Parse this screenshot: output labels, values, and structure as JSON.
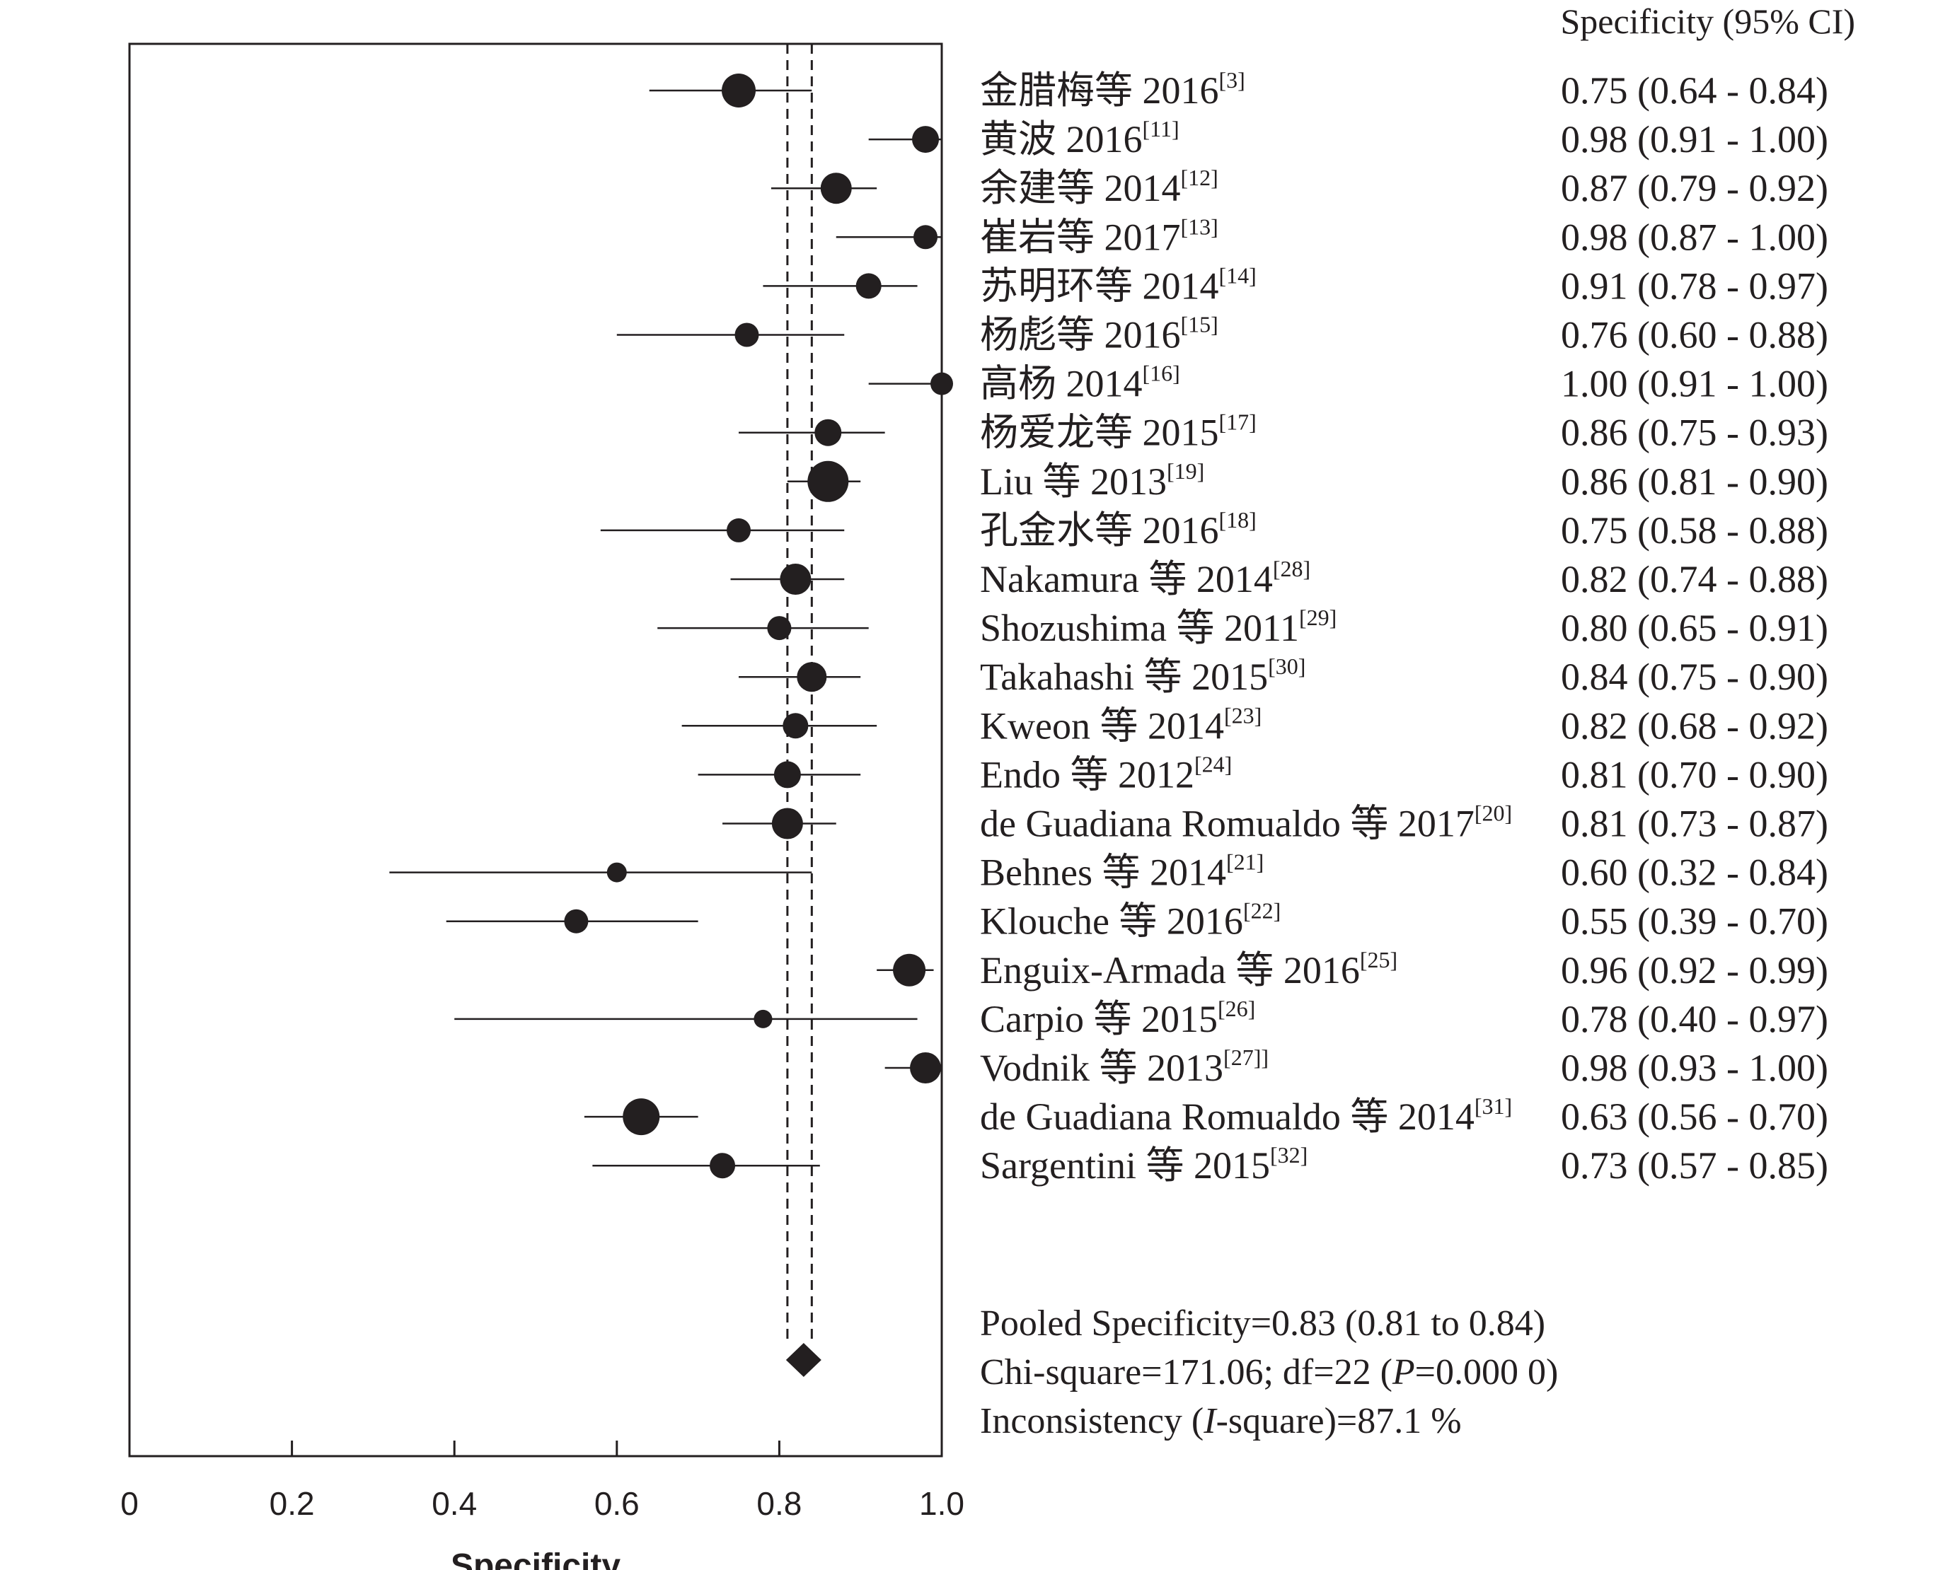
{
  "chart_data": {
    "type": "forest",
    "xlabel": "Specificity",
    "ci_header": "Specificity (95% CI)",
    "xlim": [
      0,
      1.0
    ],
    "xticks": [
      {
        "value": 0,
        "label": "0"
      },
      {
        "value": 0.2,
        "label": "0.2"
      },
      {
        "value": 0.4,
        "label": "0.4"
      },
      {
        "value": 0.6,
        "label": "0.6"
      },
      {
        "value": 0.8,
        "label": "0.8"
      },
      {
        "value": 1.0,
        "label": "1.0"
      }
    ],
    "grid": false,
    "studies": [
      {
        "name": "金腊梅等 2016",
        "ref": "[3]",
        "est": 0.75,
        "lo": 0.64,
        "hi": 0.84,
        "weight": 1.2,
        "ci_text": "0.75 (0.64 - 0.84)"
      },
      {
        "name": "黄波 2016",
        "ref": "[11]",
        "est": 0.98,
        "lo": 0.91,
        "hi": 1.0,
        "weight": 0.95,
        "ci_text": "0.98 (0.91 - 1.00)"
      },
      {
        "name": "余建等 2014",
        "ref": "[12]",
        "est": 0.87,
        "lo": 0.79,
        "hi": 0.92,
        "weight": 1.1,
        "ci_text": "0.87 (0.79 - 0.92)"
      },
      {
        "name": "崔岩等 2017",
        "ref": "[13]",
        "est": 0.98,
        "lo": 0.87,
        "hi": 1.0,
        "weight": 0.85,
        "ci_text": "0.98 (0.87 - 1.00)"
      },
      {
        "name": "苏明环等 2014",
        "ref": "[14]",
        "est": 0.91,
        "lo": 0.78,
        "hi": 0.97,
        "weight": 0.9,
        "ci_text": "0.91 (0.78 - 0.97)"
      },
      {
        "name": "杨彪等 2016",
        "ref": "[15]",
        "est": 0.76,
        "lo": 0.6,
        "hi": 0.88,
        "weight": 0.85,
        "ci_text": "0.76 (0.60 - 0.88)"
      },
      {
        "name": "高杨 2014",
        "ref": "[16]",
        "est": 1.0,
        "lo": 0.91,
        "hi": 1.0,
        "weight": 0.8,
        "ci_text": "1.00 (0.91 - 1.00)"
      },
      {
        "name": "杨爱龙等 2015",
        "ref": "[17]",
        "est": 0.86,
        "lo": 0.75,
        "hi": 0.93,
        "weight": 0.95,
        "ci_text": "0.86 (0.75 - 0.93)"
      },
      {
        "name": "Liu 等 2013",
        "ref": "[19]",
        "est": 0.86,
        "lo": 0.81,
        "hi": 0.9,
        "weight": 1.45,
        "ci_text": "0.86 (0.81 - 0.90)"
      },
      {
        "name": "孔金水等 2016",
        "ref": "[18]",
        "est": 0.75,
        "lo": 0.58,
        "hi": 0.88,
        "weight": 0.85,
        "ci_text": "0.75 (0.58 - 0.88)"
      },
      {
        "name": "Nakamura 等 2014",
        "ref": "[28]",
        "est": 0.82,
        "lo": 0.74,
        "hi": 0.88,
        "weight": 1.1,
        "ci_text": "0.82 (0.74 - 0.88)"
      },
      {
        "name": "Shozushima 等 2011",
        "ref": "[29]",
        "est": 0.8,
        "lo": 0.65,
        "hi": 0.91,
        "weight": 0.85,
        "ci_text": "0.80 (0.65 - 0.91)"
      },
      {
        "name": "Takahashi 等 2015",
        "ref": "[30]",
        "est": 0.84,
        "lo": 0.75,
        "hi": 0.9,
        "weight": 1.05,
        "ci_text": "0.84 (0.75 - 0.90)"
      },
      {
        "name": "Kweon 等 2014",
        "ref": "[23]",
        "est": 0.82,
        "lo": 0.68,
        "hi": 0.92,
        "weight": 0.9,
        "ci_text": "0.82 (0.68 - 0.92)"
      },
      {
        "name": "Endo 等 2012",
        "ref": "[24]",
        "est": 0.81,
        "lo": 0.7,
        "hi": 0.9,
        "weight": 0.95,
        "ci_text": "0.81 (0.70 - 0.90)"
      },
      {
        "name": "de Guadiana Romualdo 等 2017",
        "ref": "[20]",
        "est": 0.81,
        "lo": 0.73,
        "hi": 0.87,
        "weight": 1.1,
        "ci_text": "0.81 (0.73 - 0.87)"
      },
      {
        "name": "Behnes 等 2014",
        "ref": "[21]",
        "est": 0.6,
        "lo": 0.32,
        "hi": 0.84,
        "weight": 0.7,
        "ci_text": "0.60 (0.32 - 0.84)"
      },
      {
        "name": "Klouche 等 2016",
        "ref": "[22]",
        "est": 0.55,
        "lo": 0.39,
        "hi": 0.7,
        "weight": 0.85,
        "ci_text": "0.55 (0.39 - 0.70)"
      },
      {
        "name": "Enguix-Armada 等 2016",
        "ref": "[25]",
        "est": 0.96,
        "lo": 0.92,
        "hi": 0.99,
        "weight": 1.15,
        "ci_text": "0.96 (0.92 - 0.99)"
      },
      {
        "name": "Carpio 等 2015",
        "ref": "[26]",
        "est": 0.78,
        "lo": 0.4,
        "hi": 0.97,
        "weight": 0.65,
        "ci_text": "0.78 (0.40 - 0.97)"
      },
      {
        "name": "Vodnik 等 2013",
        "ref": "[27]]",
        "est": 0.98,
        "lo": 0.93,
        "hi": 1.0,
        "weight": 1.1,
        "ci_text": "0.98 (0.93 - 1.00)"
      },
      {
        "name": "de Guadiana Romualdo 等 2014",
        "ref": "[31]",
        "est": 0.63,
        "lo": 0.56,
        "hi": 0.7,
        "weight": 1.3,
        "ci_text": "0.63 (0.56 - 0.70)"
      },
      {
        "name": "Sargentini 等 2015",
        "ref": "[32]",
        "est": 0.73,
        "lo": 0.57,
        "hi": 0.85,
        "weight": 0.9,
        "ci_text": "0.73 (0.57 - 0.85)"
      }
    ],
    "pooled": {
      "est": 0.83,
      "lo": 0.81,
      "hi": 0.84
    },
    "summary_lines": [
      [
        {
          "t": "Pooled Specificity=0.83 (0.81 to 0.84)",
          "i": false
        }
      ],
      [
        {
          "t": "Chi-square=171.06; df=22 (",
          "i": false
        },
        {
          "t": "P",
          "i": true
        },
        {
          "t": "=0.000 0)",
          "i": false
        }
      ],
      [
        {
          "t": "Inconsistency (",
          "i": false
        },
        {
          "t": "I",
          "i": true
        },
        {
          "t": "-square)=87.1 %",
          "i": false
        }
      ]
    ],
    "colors": {
      "ink": "#231f20",
      "background": "#ffffff"
    }
  }
}
